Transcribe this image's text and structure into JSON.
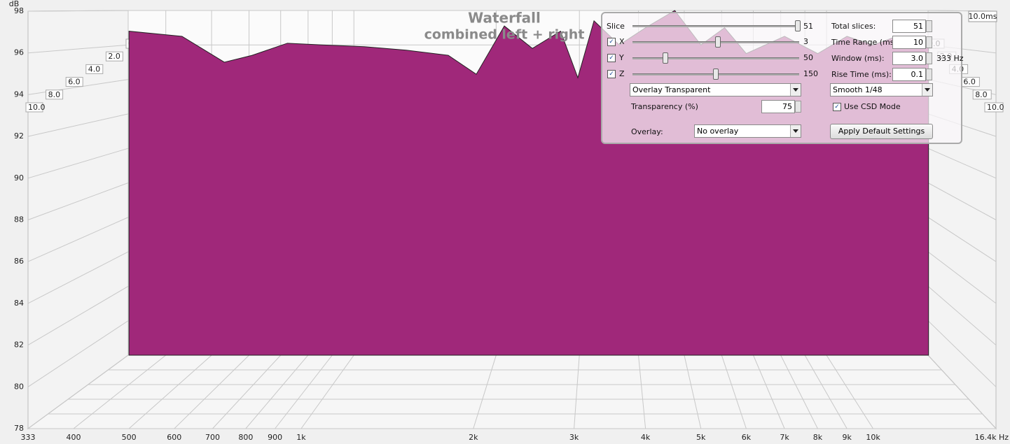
{
  "chart_data": {
    "type": "waterfall",
    "title": "Waterfall",
    "subtitle": "combined left + right",
    "y_label": "dB",
    "time_label": "10.0ms",
    "xlim": [
      333,
      16400
    ],
    "log_x": true,
    "xticks": [
      333,
      400,
      500,
      600,
      700,
      800,
      900,
      {
        "value": 1000,
        "label": "1k"
      },
      {
        "value": 2000,
        "label": "2k"
      },
      {
        "value": 3000,
        "label": "3k"
      },
      {
        "value": 4000,
        "label": "4k"
      },
      {
        "value": 5000,
        "label": "5k"
      },
      {
        "value": 6000,
        "label": "6k"
      },
      {
        "value": 7000,
        "label": "7k"
      },
      {
        "value": 8000,
        "label": "8k"
      },
      {
        "value": 9000,
        "label": "9k"
      },
      {
        "value": 10000,
        "label": "10k"
      },
      {
        "value": 16400,
        "label": "16.4k Hz"
      }
    ],
    "ylim": [
      78,
      98
    ],
    "yticks": [
      78,
      80,
      82,
      84,
      86,
      88,
      90,
      92,
      94,
      96,
      98
    ],
    "zlim": [
      0,
      10
    ],
    "zticks": [
      {
        "value": 0,
        "label": "0.0"
      },
      {
        "value": 2,
        "label": "2.0"
      },
      {
        "value": 4,
        "label": "4.0"
      },
      {
        "value": 6,
        "label": "6.0"
      },
      {
        "value": 8,
        "label": "8.0"
      },
      {
        "value": 10,
        "label": "10.0"
      }
    ],
    "series": [
      {
        "color": "#a0287a",
        "x": [
          500,
          619,
          734,
          821,
          946,
          1089,
          1289,
          1526,
          1808,
          2024,
          2266,
          2537,
          2841,
          3046,
          3251,
          3600,
          4000,
          4500,
          5000,
          5500,
          6000,
          7000,
          8000,
          9000,
          10000,
          11000,
          12500
        ],
        "values": [
          96.8,
          96.5,
          95.0,
          95.4,
          96.1,
          96.0,
          95.9,
          95.7,
          95.4,
          94.3,
          97.1,
          95.8,
          96.8,
          94.1,
          97.4,
          96.0,
          97.0,
          98.0,
          96.0,
          97.0,
          95.5,
          96.5,
          95.5,
          96.5,
          96.0,
          96.5,
          96.0
        ]
      }
    ]
  },
  "controls": {
    "slice": {
      "label": "Slice",
      "value": 51
    },
    "x": {
      "label": "X",
      "value": 3
    },
    "y": {
      "label": "Y",
      "value": 50
    },
    "z": {
      "label": "Z",
      "value": 150
    },
    "total_slices": {
      "label": "Total slices:",
      "value": 51
    },
    "time_range": {
      "label": "Time Range (ms):",
      "value": 10
    },
    "window": {
      "label": "Window (ms):",
      "value": "3.0",
      "frequency": "333 Hz"
    },
    "rise_time": {
      "label": "Rise Time (ms):",
      "value": 0.1
    },
    "mode": "Overlay Transparent",
    "smoothing": "Smooth 1/48",
    "transparency": {
      "label": "Transparency (%)",
      "value": 75
    },
    "csd": "Use CSD Mode",
    "overlay": {
      "label": "Overlay:",
      "value": "No overlay"
    },
    "apply_button": "Apply Default Settings"
  }
}
